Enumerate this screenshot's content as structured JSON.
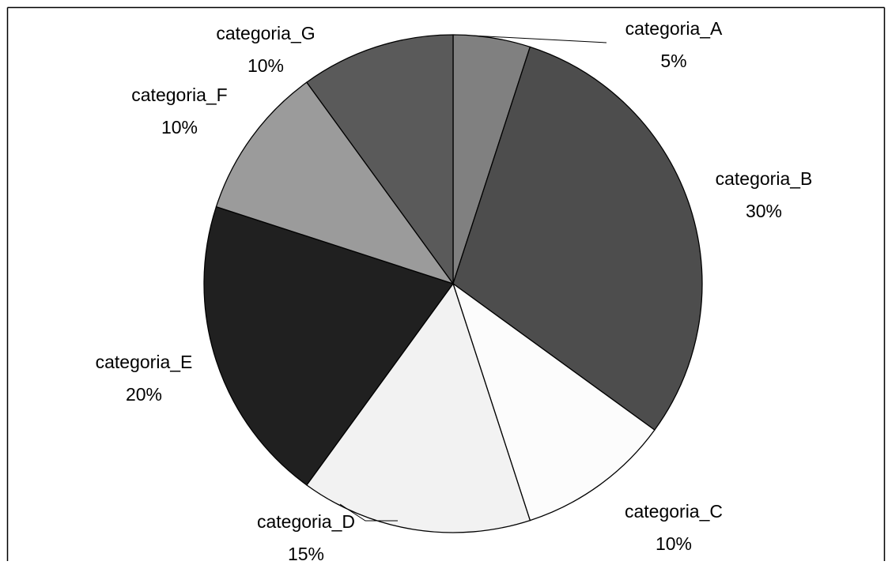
{
  "chart_data": {
    "type": "pie",
    "title": "",
    "start_angle_deg": 0,
    "direction": "clockwise",
    "slices": [
      {
        "label": "categoria_A",
        "value": 5,
        "value_label": "5%",
        "color": "#808080"
      },
      {
        "label": "categoria_B",
        "value": 30,
        "value_label": "30%",
        "color": "#4d4d4d"
      },
      {
        "label": "categoria_C",
        "value": 10,
        "value_label": "10%",
        "color": "#fcfcfc"
      },
      {
        "label": "categoria_D",
        "value": 15,
        "value_label": "15%",
        "color": "#f2f2f2"
      },
      {
        "label": "categoria_E",
        "value": 20,
        "value_label": "20%",
        "color": "#202020"
      },
      {
        "label": "categoria_F",
        "value": 10,
        "value_label": "10%",
        "color": "#9b9b9b"
      },
      {
        "label": "categoria_G",
        "value": 10,
        "value_label": "10%",
        "color": "#5a5a5a"
      }
    ]
  }
}
